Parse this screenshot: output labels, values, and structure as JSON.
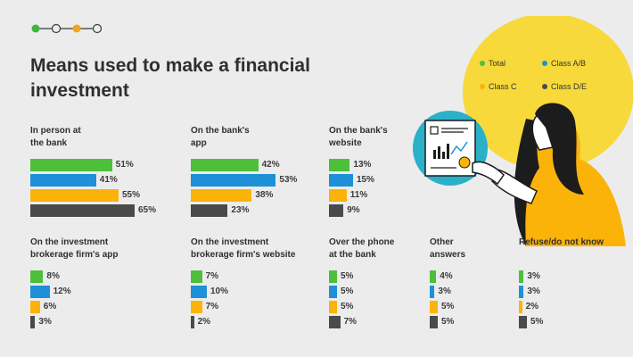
{
  "title": "Means used to make a financial investment",
  "colors": {
    "total": "#4dbf3a",
    "class_ab": "#1e90d8",
    "class_c": "#fbb30a",
    "class_de": "#4a4a4a",
    "stepper_green": "#3db53d",
    "stepper_orange": "#f5a41c",
    "illustration_yellow": "#f7d93c",
    "illustration_teal": "#2bb0c9"
  },
  "legend": [
    {
      "label": "Total",
      "color": "#4dbf3a"
    },
    {
      "label": "Class A/B",
      "color": "#1e90d8"
    },
    {
      "label": "Class C",
      "color": "#fbb30a"
    },
    {
      "label": "Class D/E",
      "color": "#4a4a4a"
    }
  ],
  "chart_data": {
    "type": "bar",
    "title": "Means used to make a financial investment",
    "series_names": [
      "Total",
      "Class A/B",
      "Class C",
      "Class D/E"
    ],
    "unit": "%",
    "panels": [
      {
        "label": "In person at\nthe bank",
        "values": [
          51,
          41,
          55,
          65
        ]
      },
      {
        "label": "On the bank's\napp",
        "values": [
          42,
          53,
          38,
          23
        ]
      },
      {
        "label": "On the bank's\nwebsite",
        "values": [
          13,
          15,
          11,
          9
        ]
      },
      {
        "label": "On the investment\nbrokerage firm's app",
        "values": [
          8,
          12,
          6,
          3
        ]
      },
      {
        "label": "On the investment\nbrokerage firm's website",
        "values": [
          7,
          10,
          7,
          2
        ]
      },
      {
        "label": "Over the phone\nat the bank",
        "values": [
          5,
          5,
          5,
          7
        ]
      },
      {
        "label": "Other\nanswers",
        "values": [
          4,
          3,
          5,
          5
        ]
      },
      {
        "label": "Refuse/do not know",
        "values": [
          3,
          3,
          2,
          5
        ]
      }
    ]
  }
}
